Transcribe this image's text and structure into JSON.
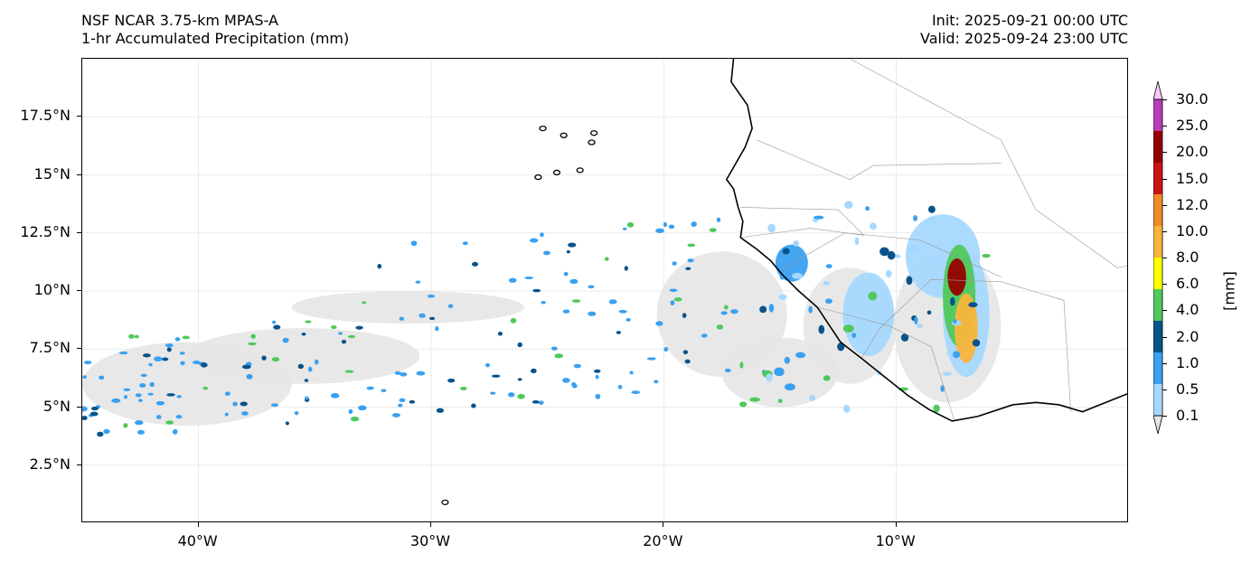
{
  "header": {
    "model": "NSF NCAR 3.75-km MPAS-A",
    "field": "1-hr Accumulated Precipitation (mm)",
    "init": "Init: 2025-09-21 00:00 UTC",
    "valid": "Valid: 2025-09-24 23:00 UTC"
  },
  "map": {
    "lon_range": [
      -45,
      0
    ],
    "lat_range": [
      0,
      20
    ],
    "lat_ticks": [
      {
        "value": 2.5,
        "label": "2.5°N"
      },
      {
        "value": 5,
        "label": "5°N"
      },
      {
        "value": 7.5,
        "label": "7.5°N"
      },
      {
        "value": 10,
        "label": "10°N"
      },
      {
        "value": 12.5,
        "label": "12.5°N"
      },
      {
        "value": 15,
        "label": "15°N"
      },
      {
        "value": 17.5,
        "label": "17.5°N"
      }
    ],
    "lon_ticks": [
      {
        "value": -40,
        "label": "40°W"
      },
      {
        "value": -30,
        "label": "30°W"
      },
      {
        "value": -20,
        "label": "20°W"
      },
      {
        "value": -10,
        "label": "10°W"
      }
    ],
    "coastline": [
      [
        -17.0,
        20.0
      ],
      [
        -17.1,
        19.0
      ],
      [
        -16.4,
        18.0
      ],
      [
        -16.2,
        17.0
      ],
      [
        -16.5,
        16.2
      ],
      [
        -17.3,
        14.8
      ],
      [
        -17.0,
        14.4
      ],
      [
        -16.8,
        13.6
      ],
      [
        -16.6,
        13.0
      ],
      [
        -16.7,
        12.3
      ],
      [
        -16.0,
        11.8
      ],
      [
        -15.4,
        11.3
      ],
      [
        -14.9,
        10.7
      ],
      [
        -14.2,
        10.0
      ],
      [
        -13.4,
        9.3
      ],
      [
        -13.0,
        8.7
      ],
      [
        -12.4,
        7.8
      ],
      [
        -11.5,
        7.1
      ],
      [
        -10.5,
        6.3
      ],
      [
        -9.5,
        5.5
      ],
      [
        -8.6,
        4.9
      ],
      [
        -7.6,
        4.4
      ],
      [
        -6.5,
        4.6
      ],
      [
        -5.0,
        5.1
      ],
      [
        -4.0,
        5.2
      ],
      [
        -3.0,
        5.1
      ],
      [
        -2.0,
        4.8
      ],
      [
        -1.0,
        5.2
      ],
      [
        0.0,
        5.6
      ]
    ],
    "islands": [
      [
        -29.4,
        0.9
      ],
      [
        -25.2,
        17.0
      ],
      [
        -24.3,
        16.7
      ],
      [
        -23.1,
        16.4
      ],
      [
        -24.6,
        15.1
      ],
      [
        -23.6,
        15.2
      ],
      [
        -25.4,
        14.9
      ],
      [
        -23.0,
        16.8
      ]
    ],
    "rain_regions": [
      {
        "lon": -40.5,
        "lat": 6.0,
        "rx": 4.5,
        "ry": 1.8,
        "level": 0
      },
      {
        "lon": -35.5,
        "lat": 7.2,
        "rx": 5.0,
        "ry": 1.2,
        "level": 0
      },
      {
        "lon": -31.0,
        "lat": 9.3,
        "rx": 5.0,
        "ry": 0.7,
        "level": 0
      },
      {
        "lon": -17.5,
        "lat": 9.0,
        "rx": 2.8,
        "ry": 2.7,
        "level": 0
      },
      {
        "lon": -15.0,
        "lat": 6.5,
        "rx": 2.5,
        "ry": 1.5,
        "level": 0
      },
      {
        "lon": -12.0,
        "lat": 8.5,
        "rx": 2.0,
        "ry": 2.5,
        "level": 0
      },
      {
        "lon": -7.8,
        "lat": 8.5,
        "rx": 2.3,
        "ry": 3.3,
        "level": 0
      },
      {
        "lon": -8.0,
        "lat": 11.5,
        "rx": 1.6,
        "ry": 1.8,
        "level": 1
      },
      {
        "lon": -7.0,
        "lat": 9.0,
        "rx": 1.0,
        "ry": 2.7,
        "level": 1
      },
      {
        "lon": -11.2,
        "lat": 9.0,
        "rx": 1.1,
        "ry": 1.8,
        "level": 1
      },
      {
        "lon": -14.5,
        "lat": 11.2,
        "rx": 0.7,
        "ry": 0.8,
        "level": 2
      },
      {
        "lon": -7.3,
        "lat": 9.8,
        "rx": 0.7,
        "ry": 2.2,
        "level": 4
      },
      {
        "lon": -7.0,
        "lat": 8.4,
        "rx": 0.5,
        "ry": 1.5,
        "level": 6
      },
      {
        "lon": -7.4,
        "lat": 10.6,
        "rx": 0.4,
        "ry": 0.8,
        "level": 9
      }
    ],
    "levels": [
      "0.1",
      "0.5",
      "1.0",
      "2.0",
      "4.0",
      "6.0",
      "8.0",
      "10.0",
      "12.0",
      "15.0",
      "20.0",
      "25.0",
      "30.0"
    ],
    "level_colors": [
      "#e6e6e6",
      "#a6d8ff",
      "#3aa0f0",
      "#08538a",
      "#4ec95a",
      "#ffff00",
      "#f8b53b",
      "#f08c26",
      "#c81414",
      "#960000",
      "#b83cb8",
      "#ffc8ff"
    ]
  },
  "colorbar": {
    "ticks": [
      "0.1",
      "0.5",
      "1.0",
      "2.0",
      "4.0",
      "6.0",
      "8.0",
      "10.0",
      "12.0",
      "15.0",
      "20.0",
      "25.0",
      "30.0"
    ],
    "unit": "[mm]"
  }
}
